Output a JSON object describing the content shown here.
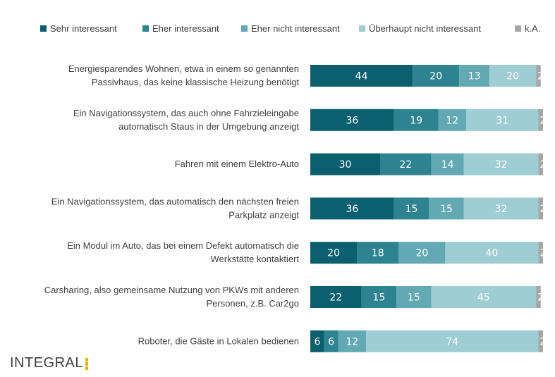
{
  "chart_data": {
    "type": "bar",
    "orientation": "horizontal",
    "stacked": true,
    "legend_position": "top",
    "categories": [
      [
        "Energiesparendes Wohnen, etwa in einem so genannten",
        "Passivhaus, das keine klassische Heizung benötigt"
      ],
      [
        "Ein Navigationssystem, das auch ohne Fahrzieleingabe",
        "automatisch Staus in der Umgebung anzeigt"
      ],
      [
        "Fahren mit einem Elektro-Auto"
      ],
      [
        "Ein Navigationssystem, das automatisch den nächsten freien",
        "Parkplatz anzeigt"
      ],
      [
        "Ein Modul im Auto, das bei einem Defekt automatisch die",
        "Werkstätte kontaktiert"
      ],
      [
        "Carsharing, also gemeinsame Nutzung von PKWs mit anderen",
        "Personen, z.B. Car2go"
      ],
      [
        "Roboter, die Gäste in Lokalen bedienen"
      ]
    ],
    "series": [
      {
        "name": "Sehr interessant",
        "color": "#0b5f6f",
        "values": [
          44,
          36,
          30,
          36,
          20,
          22,
          6
        ]
      },
      {
        "name": "Eher interessant",
        "color": "#2e8391",
        "values": [
          20,
          19,
          22,
          15,
          18,
          15,
          6
        ]
      },
      {
        "name": "Eher nicht interessant",
        "color": "#62a9b4",
        "values": [
          13,
          12,
          14,
          15,
          20,
          15,
          12
        ]
      },
      {
        "name": "Überhaupt nicht interessant",
        "color": "#9fcdd4",
        "values": [
          20,
          31,
          32,
          32,
          40,
          45,
          74
        ]
      },
      {
        "name": "k.A.",
        "color": "#a6a6a6",
        "values": [
          2,
          2,
          2,
          2,
          2,
          2,
          2
        ]
      }
    ]
  },
  "logo": {
    "text": "INTEGRAL"
  }
}
